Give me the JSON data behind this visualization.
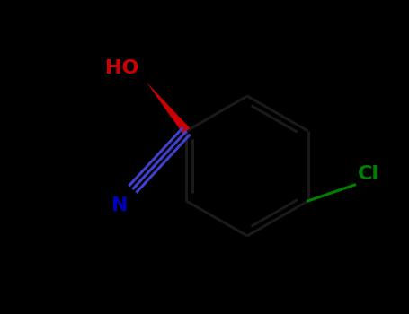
{
  "background_color": "#000000",
  "bond_color": "#1a1a1a",
  "ho_color": "#cc0000",
  "cl_color": "#008000",
  "cn_bond_color": "#4040cc",
  "n_color": "#0000bb",
  "figsize": [
    4.55,
    3.5
  ],
  "dpi": 100,
  "oh_label": "HO",
  "cl_label": "Cl",
  "n_label": "N"
}
